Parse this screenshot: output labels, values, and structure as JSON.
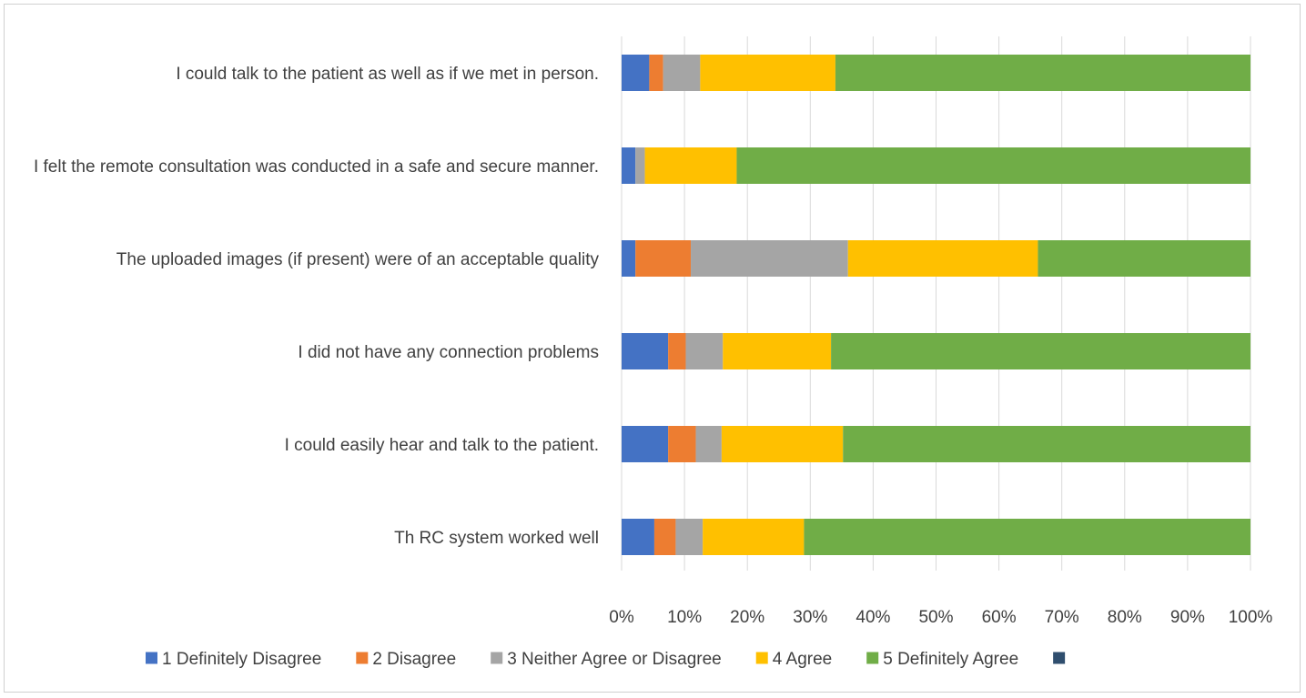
{
  "chart_data": {
    "type": "bar",
    "orientation": "horizontal",
    "stacked": "100%",
    "categories": [
      "I could talk to the patient as well as if we met in person.",
      "I felt the remote consultation was conducted in a safe and secure manner.",
      "The uploaded images (if present) were of an acceptable quality",
      "I did not have any connection problems",
      "I could easily hear and talk to the patient.",
      "Th RC system worked well"
    ],
    "series": [
      {
        "name": "1 Definitely Disagree",
        "color": "#4472c4",
        "values": [
          4.4,
          2.2,
          2.2,
          7.4,
          7.4,
          5.2
        ]
      },
      {
        "name": "2 Disagree",
        "color": "#ed7d31",
        "values": [
          2.2,
          0,
          8.8,
          2.8,
          4.4,
          3.4
        ]
      },
      {
        "name": "3 Neither Agree or Disagree",
        "color": "#a5a5a5",
        "values": [
          5.9,
          1.5,
          25,
          5.9,
          4.1,
          4.3
        ]
      },
      {
        "name": "4 Agree",
        "color": "#ffc000",
        "values": [
          21.5,
          14.6,
          30.2,
          17.2,
          19.3,
          16.1
        ]
      },
      {
        "name": "5 Definitely Agree",
        "color": "#70ad47",
        "values": [
          66,
          81.7,
          33.8,
          66.7,
          64.8,
          71
        ]
      },
      {
        "name": "",
        "color": "#2f4e6e",
        "values": [
          0,
          0,
          0,
          0,
          0,
          0
        ]
      }
    ],
    "x_ticks": [
      "0%",
      "10%",
      "20%",
      "30%",
      "40%",
      "50%",
      "60%",
      "70%",
      "80%",
      "90%",
      "100%"
    ],
    "xlim": [
      0,
      100
    ],
    "grid": "vertical",
    "legend_position": "bottom"
  }
}
